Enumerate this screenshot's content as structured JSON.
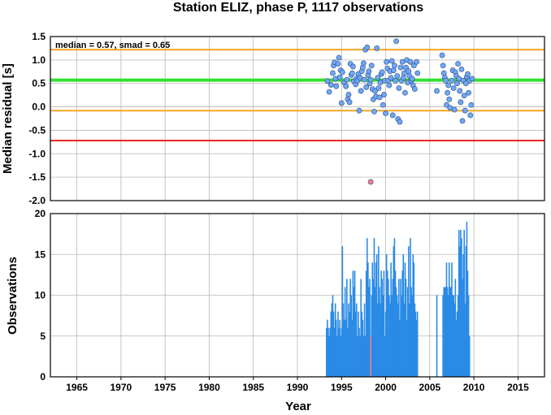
{
  "chart_data": [
    {
      "type": "scatter",
      "title": "Station ELIZ, phase P, 1117 observations",
      "ylabel": "Median residual [s]",
      "annotation": "median = 0.57, smad = 0.65",
      "xlim": [
        1962,
        2018
      ],
      "ylim": [
        -2.0,
        1.5
      ],
      "yticks": [
        "1.5",
        "1.0",
        "0.5",
        "0.0",
        "-0.5",
        "-1.0",
        "-1.5",
        "-2.0"
      ],
      "grid": true,
      "reference_lines": [
        {
          "y": 1.22,
          "color": "#f5a623"
        },
        {
          "y": 0.57,
          "color": "#33e033"
        },
        {
          "y": -0.08,
          "color": "#f5a623"
        },
        {
          "y": -0.72,
          "color": "#e8201e"
        }
      ],
      "points": [
        [
          1993.4,
          0.55
        ],
        [
          1993.6,
          0.32
        ],
        [
          1993.8,
          0.47
        ],
        [
          1994.0,
          0.72
        ],
        [
          1994.1,
          0.88
        ],
        [
          1994.2,
          0.95
        ],
        [
          1994.3,
          0.6
        ],
        [
          1994.4,
          0.44
        ],
        [
          1994.6,
          0.92
        ],
        [
          1994.7,
          1.05
        ],
        [
          1994.8,
          0.63
        ],
        [
          1994.9,
          0.78
        ],
        [
          1995.0,
          0.08
        ],
        [
          1995.1,
          0.74
        ],
        [
          1995.3,
          0.52
        ],
        [
          1995.5,
          0.44
        ],
        [
          1995.6,
          0.58
        ],
        [
          1995.7,
          0.16
        ],
        [
          1995.8,
          0.26
        ],
        [
          1995.9,
          0.1
        ],
        [
          1996.0,
          0.92
        ],
        [
          1996.1,
          0.68
        ],
        [
          1996.2,
          0.72
        ],
        [
          1996.3,
          0.86
        ],
        [
          1996.4,
          0.55
        ],
        [
          1996.6,
          0.48
        ],
        [
          1996.7,
          0.6
        ],
        [
          1996.8,
          0.56
        ],
        [
          1996.9,
          0.7
        ],
        [
          1997.0,
          -0.08
        ],
        [
          1997.1,
          0.62
        ],
        [
          1997.2,
          0.34
        ],
        [
          1997.3,
          0.76
        ],
        [
          1997.4,
          0.84
        ],
        [
          1997.5,
          0.93
        ],
        [
          1997.6,
          0.58
        ],
        [
          1997.7,
          1.22
        ],
        [
          1997.8,
          0.42
        ],
        [
          1997.9,
          1.27
        ],
        [
          1998.0,
          0.68
        ],
        [
          1998.1,
          0.76
        ],
        [
          1998.2,
          0.5
        ],
        [
          1998.3,
          0.58
        ],
        [
          1998.4,
          0.88
        ],
        [
          1998.5,
          0.38
        ],
        [
          1998.6,
          0.16
        ],
        [
          1998.7,
          -0.1
        ],
        [
          1998.8,
          0.34
        ],
        [
          1998.9,
          0.22
        ],
        [
          1999.0,
          1.25
        ],
        [
          1999.1,
          0.62
        ],
        [
          1999.2,
          0.4
        ],
        [
          1999.3,
          0.2
        ],
        [
          1999.4,
          0.52
        ],
        [
          1999.5,
          0.7
        ],
        [
          1999.6,
          0.74
        ],
        [
          1999.7,
          0.04
        ],
        [
          1999.8,
          0.26
        ],
        [
          1999.9,
          0.56
        ],
        [
          2000.0,
          -0.14
        ],
        [
          2000.1,
          0.96
        ],
        [
          2000.2,
          0.82
        ],
        [
          2000.3,
          0.56
        ],
        [
          2000.4,
          0.46
        ],
        [
          2000.5,
          0.76
        ],
        [
          2000.6,
          0.62
        ],
        [
          2000.7,
          0.98
        ],
        [
          2000.8,
          -0.18
        ],
        [
          2000.9,
          0.78
        ],
        [
          2001.0,
          0.88
        ],
        [
          2001.1,
          0.56
        ],
        [
          2001.2,
          1.4
        ],
        [
          2001.3,
          0.66
        ],
        [
          2001.4,
          -0.26
        ],
        [
          2001.5,
          0.4
        ],
        [
          2001.6,
          -0.32
        ],
        [
          2001.7,
          0.84
        ],
        [
          2001.8,
          0.56
        ],
        [
          2001.9,
          0.96
        ],
        [
          2002.0,
          0.62
        ],
        [
          2002.1,
          0.72
        ],
        [
          2002.2,
          0.3
        ],
        [
          2002.3,
          0.84
        ],
        [
          2002.4,
          1.0
        ],
        [
          2002.5,
          0.52
        ],
        [
          2002.6,
          0.76
        ],
        [
          2002.7,
          0.66
        ],
        [
          2002.8,
          0.96
        ],
        [
          2002.9,
          0.56
        ],
        [
          2003.0,
          0.6
        ],
        [
          2003.1,
          0.46
        ],
        [
          2003.2,
          0.88
        ],
        [
          2003.3,
          0.38
        ],
        [
          2003.5,
          0.96
        ],
        [
          2003.6,
          0.72
        ],
        [
          2005.8,
          0.34
        ],
        [
          2006.4,
          1.1
        ],
        [
          2006.5,
          0.88
        ],
        [
          2006.6,
          0.72
        ],
        [
          2006.7,
          0.62
        ],
        [
          2006.8,
          0.56
        ],
        [
          2006.9,
          0.04
        ],
        [
          2007.0,
          0.3
        ],
        [
          2007.1,
          0.46
        ],
        [
          2007.2,
          0.16
        ],
        [
          2007.3,
          -0.02
        ],
        [
          2007.5,
          0.56
        ],
        [
          2007.6,
          0.78
        ],
        [
          2007.7,
          0.4
        ],
        [
          2007.8,
          -0.06
        ],
        [
          2007.9,
          0.74
        ],
        [
          2008.0,
          0.66
        ],
        [
          2008.1,
          0.5
        ],
        [
          2008.2,
          0.92
        ],
        [
          2008.3,
          0.6
        ],
        [
          2008.4,
          0.34
        ],
        [
          2008.5,
          0.1
        ],
        [
          2008.6,
          0.8
        ],
        [
          2008.7,
          -0.3
        ],
        [
          2008.8,
          0.56
        ],
        [
          2008.9,
          0.24
        ],
        [
          2009.0,
          -0.08
        ],
        [
          2009.1,
          0.5
        ],
        [
          2009.2,
          0.64
        ],
        [
          2009.3,
          0.7
        ],
        [
          2009.4,
          0.3
        ],
        [
          2009.5,
          0.56
        ],
        [
          2009.6,
          -0.18
        ],
        [
          2009.7,
          0.04
        ],
        [
          2009.8,
          0.6
        ],
        {
          "x": 1998.3,
          "y": -1.6,
          "color": "#f08080"
        }
      ]
    },
    {
      "type": "bar",
      "xlabel": "Year",
      "ylabel": "Observations",
      "xlim": [
        1962,
        2018
      ],
      "ylim": [
        0,
        20
      ],
      "xticks": [
        "1965",
        "1970",
        "1975",
        "1980",
        "1985",
        "1990",
        "1995",
        "2000",
        "2005",
        "2010",
        "2015"
      ],
      "yticks": [
        "20",
        "15",
        "10",
        "5",
        "0"
      ],
      "grid": true,
      "bar_color": "#2b8be6",
      "highlight": {
        "x": 1998.3,
        "value": 5,
        "color": "#f08080"
      },
      "bars": [
        [
          1993.3,
          6
        ],
        [
          1993.4,
          7
        ],
        [
          1993.5,
          6
        ],
        [
          1993.6,
          5
        ],
        [
          1993.7,
          6
        ],
        [
          1993.8,
          8
        ],
        [
          1993.9,
          9
        ],
        [
          1994.0,
          10
        ],
        [
          1994.1,
          8
        ],
        [
          1994.2,
          6
        ],
        [
          1994.3,
          9
        ],
        [
          1994.4,
          7
        ],
        [
          1994.5,
          5
        ],
        [
          1994.6,
          8
        ],
        [
          1994.7,
          6
        ],
        [
          1994.8,
          7
        ],
        [
          1994.9,
          5
        ],
        [
          1995.0,
          6
        ],
        [
          1995.1,
          16
        ],
        [
          1995.2,
          9
        ],
        [
          1995.3,
          7
        ],
        [
          1995.4,
          11
        ],
        [
          1995.5,
          7
        ],
        [
          1995.6,
          12
        ],
        [
          1995.7,
          6
        ],
        [
          1995.8,
          9
        ],
        [
          1995.9,
          8
        ],
        [
          1996.0,
          12
        ],
        [
          1996.1,
          10
        ],
        [
          1996.2,
          7
        ],
        [
          1996.3,
          13
        ],
        [
          1996.4,
          11
        ],
        [
          1996.5,
          13
        ],
        [
          1996.6,
          8
        ],
        [
          1996.7,
          9
        ],
        [
          1996.8,
          5
        ],
        [
          1996.9,
          8
        ],
        [
          1997.0,
          6
        ],
        [
          1997.1,
          5
        ],
        [
          1997.2,
          12
        ],
        [
          1997.3,
          8
        ],
        [
          1997.4,
          7
        ],
        [
          1997.5,
          5
        ],
        [
          1997.6,
          9
        ],
        [
          1997.7,
          5
        ],
        [
          1997.8,
          13
        ],
        [
          1997.9,
          17
        ],
        [
          1998.0,
          14
        ],
        [
          1998.1,
          11
        ],
        [
          1998.2,
          12
        ],
        [
          1998.4,
          10
        ],
        [
          1998.5,
          14
        ],
        [
          1998.6,
          12
        ],
        [
          1998.7,
          17
        ],
        [
          1998.8,
          11
        ],
        [
          1998.9,
          14
        ],
        [
          1999.0,
          15
        ],
        [
          1999.1,
          9
        ],
        [
          1999.2,
          16
        ],
        [
          1999.3,
          11
        ],
        [
          1999.4,
          9
        ],
        [
          1999.5,
          13
        ],
        [
          1999.6,
          12
        ],
        [
          1999.7,
          10
        ],
        [
          1999.8,
          13
        ],
        [
          1999.9,
          5
        ],
        [
          2000.0,
          8
        ],
        [
          2000.1,
          15
        ],
        [
          2000.2,
          13
        ],
        [
          2000.3,
          12
        ],
        [
          2000.4,
          10
        ],
        [
          2000.5,
          9
        ],
        [
          2000.6,
          14
        ],
        [
          2000.7,
          10
        ],
        [
          2000.8,
          12
        ],
        [
          2000.9,
          16
        ],
        [
          2001.0,
          17
        ],
        [
          2001.1,
          13
        ],
        [
          2001.2,
          11
        ],
        [
          2001.3,
          10
        ],
        [
          2001.4,
          9
        ],
        [
          2001.5,
          12
        ],
        [
          2001.6,
          7
        ],
        [
          2001.7,
          12
        ],
        [
          2001.8,
          10
        ],
        [
          2001.9,
          13
        ],
        [
          2002.0,
          15
        ],
        [
          2002.1,
          9
        ],
        [
          2002.2,
          14
        ],
        [
          2002.3,
          12
        ],
        [
          2002.4,
          7
        ],
        [
          2002.5,
          11
        ],
        [
          2002.6,
          16
        ],
        [
          2002.7,
          9
        ],
        [
          2002.8,
          17
        ],
        [
          2002.9,
          11
        ],
        [
          2003.0,
          10
        ],
        [
          2003.1,
          15
        ],
        [
          2003.2,
          14
        ],
        [
          2003.3,
          9
        ],
        [
          2003.4,
          8
        ],
        [
          2003.5,
          7
        ],
        [
          2003.6,
          8
        ],
        [
          2005.8,
          10
        ],
        [
          2006.5,
          10
        ],
        [
          2006.6,
          11
        ],
        [
          2006.7,
          11
        ],
        [
          2006.8,
          11
        ],
        [
          2006.9,
          14
        ],
        [
          2007.0,
          11
        ],
        [
          2007.1,
          10
        ],
        [
          2007.2,
          14
        ],
        [
          2007.3,
          11
        ],
        [
          2007.4,
          11
        ],
        [
          2007.5,
          14
        ],
        [
          2007.6,
          10
        ],
        [
          2007.7,
          10
        ],
        [
          2007.8,
          9
        ],
        [
          2007.9,
          12
        ],
        [
          2008.0,
          7
        ],
        [
          2008.1,
          8
        ],
        [
          2008.2,
          10
        ],
        [
          2008.3,
          18
        ],
        [
          2008.4,
          16
        ],
        [
          2008.5,
          18
        ],
        [
          2008.6,
          17
        ],
        [
          2008.7,
          12
        ],
        [
          2008.8,
          15
        ],
        [
          2008.9,
          18
        ],
        [
          2009.0,
          9
        ],
        [
          2009.1,
          16
        ],
        [
          2009.2,
          19
        ],
        [
          2009.3,
          13
        ],
        [
          2009.4,
          10
        ],
        [
          2009.5,
          5
        ]
      ]
    }
  ]
}
